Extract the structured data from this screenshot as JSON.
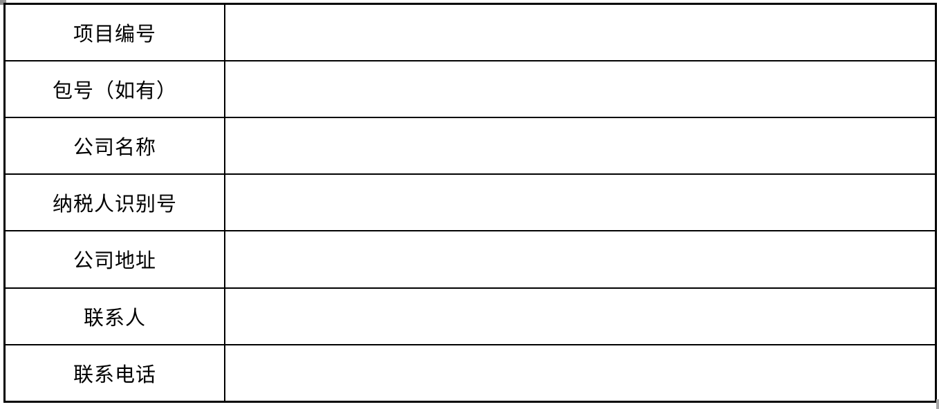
{
  "document": {
    "type": "fill-in-form-table",
    "colors": {
      "border": "#000000",
      "background": "#ffffff",
      "text": "#000000"
    },
    "table": {
      "columns": [
        "label",
        "value"
      ],
      "rows": [
        {
          "label": "项目编号",
          "value": ""
        },
        {
          "label": "包号（如有）",
          "value": ""
        },
        {
          "label": "公司名称",
          "value": ""
        },
        {
          "label": "纳税人识别号",
          "value": ""
        },
        {
          "label": "公司地址",
          "value": ""
        },
        {
          "label": "联系人",
          "value": ""
        },
        {
          "label": "联系电话",
          "value": ""
        }
      ]
    }
  }
}
